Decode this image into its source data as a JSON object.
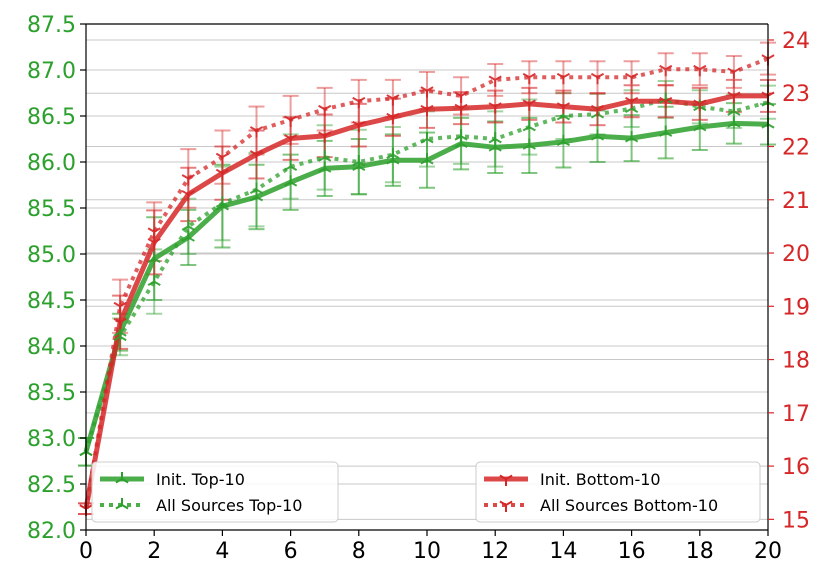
{
  "chart_data": {
    "type": "line",
    "title": "",
    "xlabel": "",
    "ylabel_left": "",
    "ylabel_right": "",
    "x": [
      0,
      1,
      2,
      3,
      4,
      5,
      6,
      7,
      8,
      9,
      10,
      11,
      12,
      13,
      14,
      15,
      16,
      17,
      18,
      19,
      20
    ],
    "xlim": [
      0,
      20
    ],
    "xticks": [
      "0",
      "2",
      "4",
      "6",
      "8",
      "10",
      "12",
      "14",
      "16",
      "18",
      "20"
    ],
    "ylim_left": [
      82.0,
      87.5
    ],
    "yticks_left": [
      "82.0",
      "82.5",
      "83.0",
      "83.5",
      "84.0",
      "84.5",
      "85.0",
      "85.5",
      "86.0",
      "86.5",
      "87.0",
      "87.5"
    ],
    "ylim_right": [
      14.8,
      24.3
    ],
    "yticks_right": [
      "15",
      "16",
      "17",
      "18",
      "19",
      "20",
      "21",
      "22",
      "23",
      "24"
    ],
    "grid": "horizontal",
    "colors": {
      "green": "#2ca02c",
      "red": "#d62728"
    },
    "series": [
      {
        "name": "Init. Top-10",
        "axis": "left",
        "color": "#2ca02c",
        "style": "solid",
        "marker": "tri",
        "values": [
          82.85,
          84.15,
          84.95,
          85.18,
          85.52,
          85.62,
          85.78,
          85.93,
          85.95,
          86.02,
          86.02,
          86.2,
          86.16,
          86.18,
          86.22,
          86.28,
          86.26,
          86.32,
          86.38,
          86.42,
          86.41
        ],
        "errors": [
          0.15,
          0.2,
          0.45,
          0.3,
          0.45,
          0.35,
          0.3,
          0.3,
          0.3,
          0.28,
          0.3,
          0.28,
          0.28,
          0.3,
          0.28,
          0.28,
          0.25,
          0.28,
          0.25,
          0.22,
          0.22
        ]
      },
      {
        "name": "All Sources Top-10",
        "axis": "left",
        "color": "#2ca02c",
        "style": "dotted",
        "marker": "tri",
        "values": [
          82.85,
          84.1,
          84.7,
          85.3,
          85.55,
          85.7,
          85.95,
          86.05,
          86.0,
          86.08,
          86.25,
          86.28,
          86.25,
          86.38,
          86.5,
          86.52,
          86.58,
          86.68,
          86.6,
          86.55,
          86.65
        ],
        "errors": [
          0.15,
          0.2,
          0.35,
          0.3,
          0.4,
          0.4,
          0.35,
          0.35,
          0.35,
          0.3,
          0.3,
          0.3,
          0.3,
          0.3,
          0.25,
          0.22,
          0.2,
          0.2,
          0.18,
          0.18,
          0.18
        ]
      },
      {
        "name": "Init. Bottom-10",
        "axis": "right",
        "color": "#d62728",
        "style": "solid",
        "marker": "tri_down",
        "values": [
          15.2,
          18.7,
          20.2,
          21.1,
          21.5,
          21.85,
          22.15,
          22.2,
          22.4,
          22.55,
          22.7,
          22.72,
          22.75,
          22.8,
          22.75,
          22.7,
          22.85,
          22.85,
          22.8,
          22.95,
          22.95
        ],
        "errors": [
          0.1,
          0.5,
          0.6,
          0.5,
          0.5,
          0.45,
          0.4,
          0.4,
          0.4,
          0.35,
          0.35,
          0.3,
          0.3,
          0.3,
          0.3,
          0.3,
          0.3,
          0.3,
          0.3,
          0.3,
          0.3
        ]
      },
      {
        "name": "All Sources Bottom-10",
        "axis": "right",
        "color": "#d62728",
        "style": "dotted",
        "marker": "tri_down",
        "values": [
          15.2,
          19.0,
          20.4,
          21.4,
          21.8,
          22.3,
          22.5,
          22.7,
          22.85,
          22.9,
          23.05,
          22.95,
          23.25,
          23.3,
          23.3,
          23.3,
          23.3,
          23.45,
          23.45,
          23.4,
          23.65
        ],
        "errors": [
          0.1,
          0.5,
          0.55,
          0.55,
          0.5,
          0.45,
          0.45,
          0.4,
          0.4,
          0.35,
          0.35,
          0.35,
          0.3,
          0.3,
          0.3,
          0.3,
          0.3,
          0.3,
          0.3,
          0.3,
          0.3
        ]
      }
    ],
    "legends": [
      {
        "placement": "lower-left",
        "entries": [
          "Init. Top-10",
          "All Sources Top-10"
        ]
      },
      {
        "placement": "lower-right",
        "entries": [
          "Init. Bottom-10",
          "All Sources Bottom-10"
        ]
      }
    ]
  }
}
